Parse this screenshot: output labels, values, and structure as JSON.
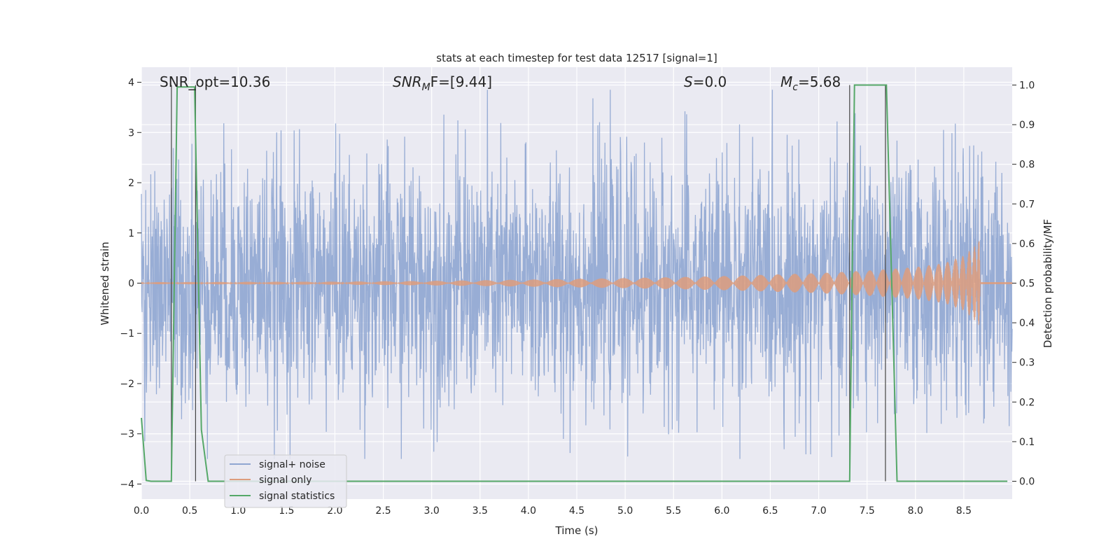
{
  "chart_data": {
    "type": "line",
    "title": "stats at each timestep for test data 12517 [signal=1]",
    "xlabel": "Time (s)",
    "ylabel": "Whitened strain",
    "ylabel_right": "Detection probability/MF",
    "xlim": [
      0.0,
      9.0
    ],
    "ylim": [
      -4.3,
      4.3
    ],
    "ylim_right": [
      -0.045,
      1.045
    ],
    "x_ticks": [
      "0.0",
      "0.5",
      "1.0",
      "1.5",
      "2.0",
      "2.5",
      "3.0",
      "3.5",
      "4.0",
      "4.5",
      "5.0",
      "5.5",
      "6.0",
      "6.5",
      "7.0",
      "7.5",
      "8.0",
      "8.5"
    ],
    "y_ticks": [
      "4",
      "3",
      "2",
      "1",
      "0",
      "−1",
      "−2",
      "−3",
      "−4"
    ],
    "y_ticks_right": [
      "1.0",
      "0.9",
      "0.8",
      "0.7",
      "0.6",
      "0.5",
      "0.4",
      "0.3",
      "0.2",
      "0.1",
      "0.0"
    ],
    "grid": true,
    "legend_position": "lower-left",
    "annotations": {
      "snr_opt": "SNR_opt=10.36",
      "snr_mf_main": "SNR",
      "snr_mf_sub": "M",
      "snr_mf_tail": "F=[9.44]",
      "s_main": "S",
      "s_tail": "=0.0",
      "mc_main": "M",
      "mc_sub": "c",
      "mc_tail": "=5.68"
    },
    "series": [
      {
        "name": "signal+ noise",
        "color": "#8fa6d1",
        "description_envelope": {
          "x": [
            0.0,
            9.0
          ],
          "typical_amplitude": 1.3,
          "peak_max": 3.85,
          "peak_min": -3.5
        }
      },
      {
        "name": "signal only",
        "color": "#dd9c7c",
        "envelope": {
          "x": [
            0.0,
            1.0,
            2.0,
            3.0,
            4.0,
            5.0,
            6.0,
            7.0,
            7.5,
            8.0,
            8.3,
            8.5,
            8.6,
            8.66,
            8.67,
            9.0
          ],
          "amplitude": [
            0.02,
            0.025,
            0.03,
            0.045,
            0.07,
            0.1,
            0.14,
            0.2,
            0.25,
            0.32,
            0.4,
            0.55,
            0.72,
            0.85,
            0.02,
            0.02
          ]
        }
      },
      {
        "name": "signal statistics",
        "color": "#55a868",
        "axis": "right",
        "x": [
          0.0,
          0.05,
          0.1,
          0.3,
          0.31,
          0.37,
          0.55,
          0.62,
          0.69,
          7.32,
          7.37,
          7.7,
          7.81,
          8.95
        ],
        "y": [
          0.16,
          0.002,
          0.0,
          0.0,
          0.0,
          0.995,
          0.995,
          0.13,
          0.0,
          0.0,
          1.0,
          1.0,
          0.0,
          0.0
        ]
      }
    ],
    "vertical_markers": {
      "x": [
        0.31,
        0.56,
        7.32,
        7.69
      ],
      "color": "#444444"
    }
  }
}
